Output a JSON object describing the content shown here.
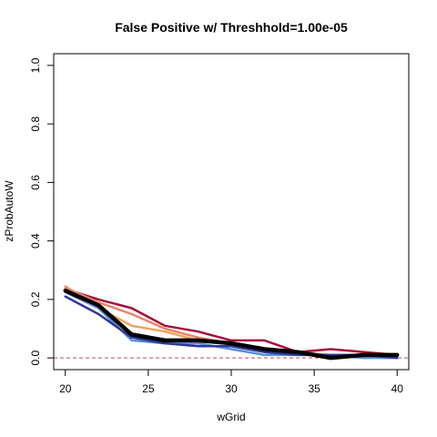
{
  "chart_data": {
    "type": "line",
    "title": "False Positive w/ Threshhold=1.00e-05",
    "xlabel": "wGrid",
    "ylabel": "zProbAutoW",
    "xlim": [
      19.3,
      40.7
    ],
    "ylim": [
      -0.04,
      1.04
    ],
    "x_ticks": [
      20,
      25,
      30,
      35,
      40
    ],
    "y_ticks": [
      0.0,
      0.2,
      0.4,
      0.6,
      0.8,
      1.0
    ],
    "y_tick_labels": [
      "0.0",
      "0.2",
      "0.4",
      "0.6",
      "0.8",
      "1.0"
    ],
    "x_tick_labels": [
      "20",
      "25",
      "30",
      "35",
      "40"
    ],
    "reference_line": {
      "y": 0.0,
      "color": "#d1485a",
      "style": "dashed"
    },
    "x": [
      20,
      22,
      24,
      26,
      28,
      30,
      32,
      34,
      36,
      38,
      40
    ],
    "series": [
      {
        "color": "#a50f3a",
        "width": 2.5,
        "values": [
          0.235,
          0.2,
          0.17,
          0.11,
          0.09,
          0.06,
          0.06,
          0.02,
          0.03,
          0.02,
          0.01
        ]
      },
      {
        "color": "#f4a259",
        "width": 2.5,
        "values": [
          0.245,
          0.17,
          0.11,
          0.09,
          0.06,
          0.05,
          0.03,
          0.02,
          0.0,
          0.01,
          0.01
        ]
      },
      {
        "color": "#e9846a",
        "width": 2.5,
        "values": [
          0.24,
          0.19,
          0.15,
          0.1,
          0.07,
          0.05,
          0.03,
          0.02,
          0.01,
          0.01,
          0.01
        ]
      },
      {
        "color": "#5b8fd6",
        "width": 2.5,
        "values": [
          0.225,
          0.17,
          0.06,
          0.05,
          0.05,
          0.03,
          0.01,
          0.01,
          0.01,
          0.0,
          0.0
        ]
      },
      {
        "color": "#2c3896",
        "width": 2.5,
        "values": [
          0.21,
          0.15,
          0.07,
          0.05,
          0.04,
          0.04,
          0.02,
          0.01,
          0.01,
          0.01,
          0.0
        ]
      },
      {
        "color": "#000000",
        "width": 4.5,
        "values": [
          0.23,
          0.18,
          0.08,
          0.06,
          0.06,
          0.05,
          0.03,
          0.02,
          0.0,
          0.01,
          0.01
        ]
      }
    ]
  }
}
